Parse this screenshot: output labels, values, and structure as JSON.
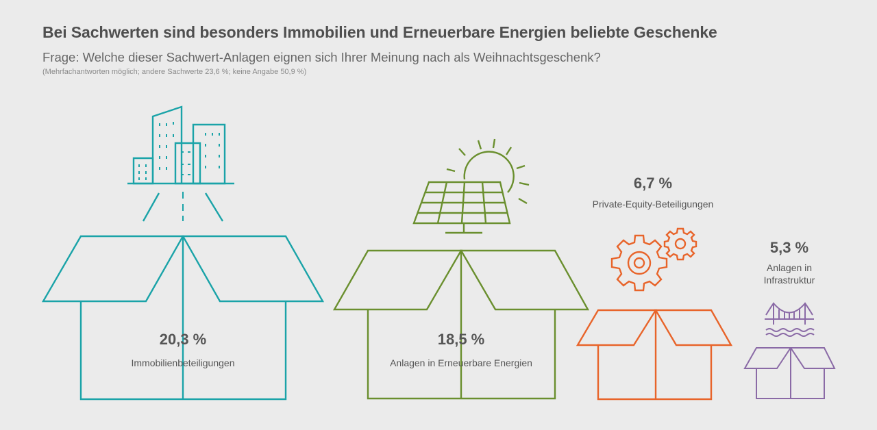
{
  "header": {
    "title": "Bei Sachwerten sind besonders Immobilien und Erneuerbare Energien beliebte Geschenke",
    "subtitle": "Frage: Welche dieser Sachwert-Anlagen eignen sich Ihrer Meinung nach als Weihnachtsgeschenk?",
    "note": "(Mehrfachantworten möglich; andere Sachwerte 23,6 %; keine Angabe 50,9 %)"
  },
  "colors": {
    "background": "#ebebeb",
    "immobilien": "#1aa3a8",
    "erneuerbar": "#6a8f2e",
    "private_equity": "#e8642a",
    "infrastruktur": "#8a6aa6"
  },
  "chart_data": {
    "type": "pictogram",
    "title": "Bei Sachwerten sind besonders Immobilien und Erneuerbare Energien beliebte Geschenke",
    "categories": [
      "Immobilienbeteiligungen",
      "Anlagen in Erneuerbare Energien",
      "Private-Equity-Beteiligungen",
      "Anlagen in Infrastruktur"
    ],
    "values": [
      20.3,
      18.5,
      6.7,
      5.3
    ],
    "unit": "%",
    "items": [
      {
        "label": "Immobilienbeteiligungen",
        "value": 20.3,
        "value_text": "20,3 %",
        "icon": "city-buildings-icon",
        "color": "#1aa3a8"
      },
      {
        "label": "Anlagen in Erneuerbare Energien",
        "value": 18.5,
        "value_text": "18,5 %",
        "icon": "solar-panel-sun-icon",
        "color": "#6a8f2e"
      },
      {
        "label": "Private-Equity-Beteiligungen",
        "value": 6.7,
        "value_text": "6,7 %",
        "icon": "gears-icon",
        "color": "#e8642a"
      },
      {
        "label_lines": [
          "Anlagen in",
          "Infrastruktur"
        ],
        "label": "Anlagen in Infrastruktur",
        "value": 5.3,
        "value_text": "5,3 %",
        "icon": "bridge-icon",
        "color": "#8a6aa6"
      }
    ],
    "other_answers": [
      {
        "label": "andere Sachwerte",
        "value": 23.6
      },
      {
        "label": "keine Angabe",
        "value": 50.9
      }
    ]
  }
}
